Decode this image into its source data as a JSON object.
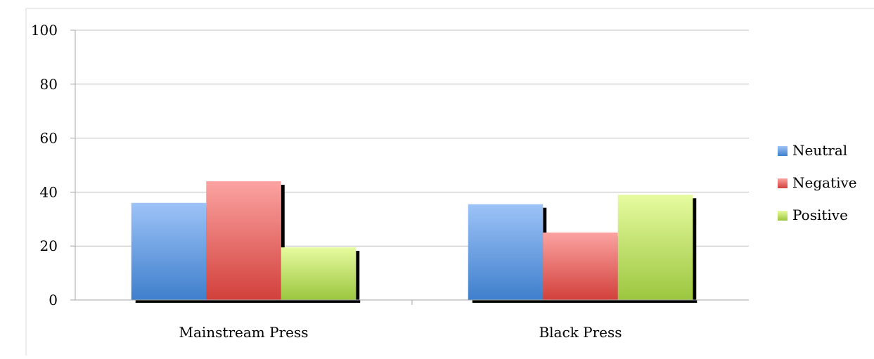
{
  "chart_data": {
    "type": "bar",
    "categories": [
      "Mainstream Press",
      "Black Press"
    ],
    "series": [
      {
        "name": "Neutral",
        "values": [
          36,
          35.5
        ],
        "color": "#4f81bd"
      },
      {
        "name": "Negative",
        "values": [
          44,
          25
        ],
        "color": "#d34c47"
      },
      {
        "name": "Positive",
        "values": [
          19.5,
          39
        ],
        "color": "#9bbb59"
      }
    ],
    "yticks": [
      "0",
      "20",
      "40",
      "60",
      "80",
      "100"
    ],
    "ylim": [
      0,
      100
    ],
    "grid": true,
    "legend": "right"
  }
}
